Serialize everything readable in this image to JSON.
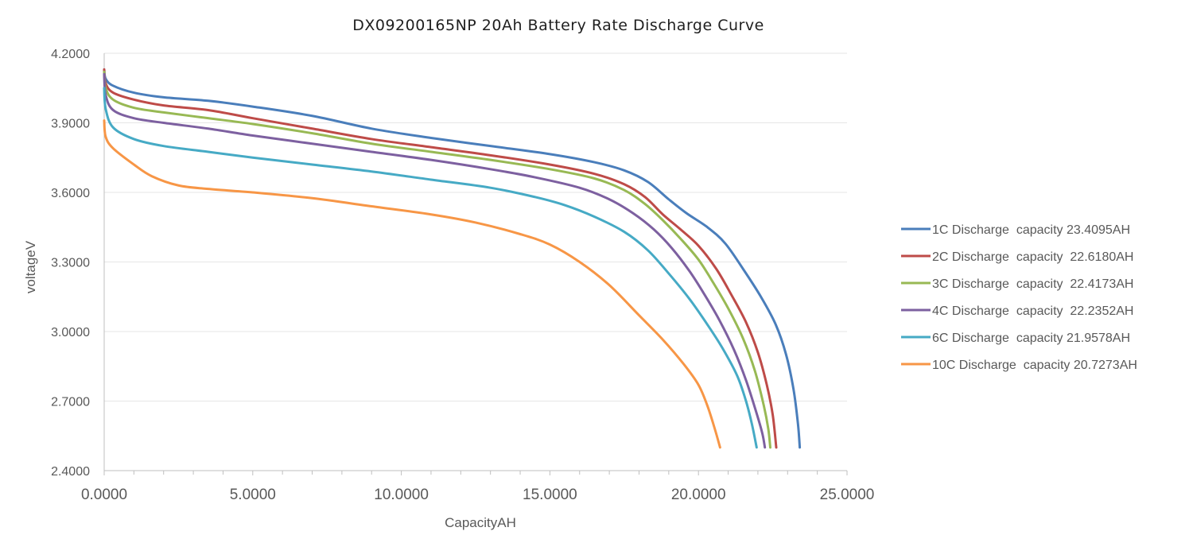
{
  "chart_data": {
    "type": "line",
    "title": "DX09200165NP 20Ah Battery Rate Discharge Curve",
    "xlabel": "CapacityAH",
    "ylabel": "voltageV",
    "xlim": [
      0,
      25
    ],
    "ylim": [
      2.4,
      4.2
    ],
    "x_ticks": [
      "0.0000",
      "5.0000",
      "10.0000",
      "15.0000",
      "20.0000",
      "25.0000"
    ],
    "y_ticks": [
      "2.4000",
      "2.7000",
      "3.0000",
      "3.3000",
      "3.6000",
      "3.9000",
      "4.2000"
    ],
    "grid": "horizontal",
    "legend_position": "right",
    "series": [
      {
        "name": "1C Discharge  capacity 23.4095AH",
        "color": "#4a7ebb",
        "points": [
          [
            0,
            4.13
          ],
          [
            0.05,
            4.09
          ],
          [
            0.3,
            4.06
          ],
          [
            1,
            4.03
          ],
          [
            2,
            4.01
          ],
          [
            3.5,
            3.995
          ],
          [
            5,
            3.97
          ],
          [
            7,
            3.93
          ],
          [
            9,
            3.875
          ],
          [
            11,
            3.835
          ],
          [
            13,
            3.8
          ],
          [
            15,
            3.765
          ],
          [
            16.5,
            3.73
          ],
          [
            17.5,
            3.695
          ],
          [
            18.3,
            3.645
          ],
          [
            19,
            3.57
          ],
          [
            19.6,
            3.51
          ],
          [
            20.3,
            3.45
          ],
          [
            20.9,
            3.38
          ],
          [
            21.5,
            3.27
          ],
          [
            22.1,
            3.15
          ],
          [
            22.6,
            3.03
          ],
          [
            22.95,
            2.9
          ],
          [
            23.2,
            2.75
          ],
          [
            23.35,
            2.6
          ],
          [
            23.4095,
            2.5
          ]
        ]
      },
      {
        "name": "2C Discharge  capacity  22.6180AH",
        "color": "#be4b48",
        "points": [
          [
            0,
            4.13
          ],
          [
            0.05,
            4.07
          ],
          [
            0.3,
            4.03
          ],
          [
            1,
            4.0
          ],
          [
            2,
            3.975
          ],
          [
            3.5,
            3.955
          ],
          [
            5,
            3.92
          ],
          [
            7,
            3.875
          ],
          [
            9,
            3.83
          ],
          [
            11,
            3.795
          ],
          [
            13,
            3.76
          ],
          [
            15,
            3.72
          ],
          [
            16.5,
            3.68
          ],
          [
            17.5,
            3.635
          ],
          [
            18.2,
            3.58
          ],
          [
            18.8,
            3.505
          ],
          [
            19.4,
            3.44
          ],
          [
            20,
            3.37
          ],
          [
            20.6,
            3.27
          ],
          [
            21.1,
            3.16
          ],
          [
            21.6,
            3.04
          ],
          [
            22.0,
            2.91
          ],
          [
            22.3,
            2.77
          ],
          [
            22.5,
            2.64
          ],
          [
            22.618,
            2.5
          ]
        ]
      },
      {
        "name": "3C Discharge  capacity  22.4173AH",
        "color": "#98b954",
        "points": [
          [
            0,
            4.12
          ],
          [
            0.05,
            4.05
          ],
          [
            0.3,
            4.0
          ],
          [
            1,
            3.965
          ],
          [
            2,
            3.945
          ],
          [
            3.5,
            3.92
          ],
          [
            5,
            3.895
          ],
          [
            7,
            3.855
          ],
          [
            9,
            3.81
          ],
          [
            11,
            3.775
          ],
          [
            13,
            3.74
          ],
          [
            15,
            3.7
          ],
          [
            16.5,
            3.66
          ],
          [
            17.5,
            3.61
          ],
          [
            18.2,
            3.55
          ],
          [
            18.8,
            3.48
          ],
          [
            19.4,
            3.4
          ],
          [
            20,
            3.31
          ],
          [
            20.5,
            3.21
          ],
          [
            21,
            3.1
          ],
          [
            21.5,
            2.97
          ],
          [
            21.9,
            2.83
          ],
          [
            22.2,
            2.68
          ],
          [
            22.35,
            2.58
          ],
          [
            22.4173,
            2.5
          ]
        ]
      },
      {
        "name": "4C Discharge  capacity  22.2352AH",
        "color": "#7d60a0",
        "points": [
          [
            0,
            4.11
          ],
          [
            0.05,
            4.02
          ],
          [
            0.3,
            3.955
          ],
          [
            1,
            3.92
          ],
          [
            2,
            3.9
          ],
          [
            3.5,
            3.875
          ],
          [
            5,
            3.845
          ],
          [
            7,
            3.81
          ],
          [
            9,
            3.775
          ],
          [
            11,
            3.74
          ],
          [
            13,
            3.7
          ],
          [
            14.5,
            3.665
          ],
          [
            16,
            3.62
          ],
          [
            17,
            3.57
          ],
          [
            17.8,
            3.51
          ],
          [
            18.5,
            3.44
          ],
          [
            19.1,
            3.36
          ],
          [
            19.7,
            3.26
          ],
          [
            20.2,
            3.16
          ],
          [
            20.7,
            3.05
          ],
          [
            21.2,
            2.92
          ],
          [
            21.6,
            2.79
          ],
          [
            21.95,
            2.65
          ],
          [
            22.15,
            2.56
          ],
          [
            22.2352,
            2.5
          ]
        ]
      },
      {
        "name": "6C Discharge  capacity 21.9578AH",
        "color": "#46aac5",
        "points": [
          [
            0,
            4.05
          ],
          [
            0.05,
            3.96
          ],
          [
            0.3,
            3.88
          ],
          [
            1,
            3.83
          ],
          [
            2,
            3.8
          ],
          [
            3.5,
            3.775
          ],
          [
            5,
            3.75
          ],
          [
            7,
            3.72
          ],
          [
            9,
            3.69
          ],
          [
            11,
            3.655
          ],
          [
            13,
            3.62
          ],
          [
            14.5,
            3.58
          ],
          [
            15.5,
            3.545
          ],
          [
            16.5,
            3.495
          ],
          [
            17.5,
            3.43
          ],
          [
            18.3,
            3.35
          ],
          [
            19,
            3.25
          ],
          [
            19.7,
            3.14
          ],
          [
            20.3,
            3.03
          ],
          [
            20.8,
            2.93
          ],
          [
            21.3,
            2.81
          ],
          [
            21.6,
            2.7
          ],
          [
            21.8,
            2.6
          ],
          [
            21.9578,
            2.5
          ]
        ]
      },
      {
        "name": "10C Discharge  capacity 20.7273AH",
        "color": "#f79646",
        "points": [
          [
            0,
            3.91
          ],
          [
            0.05,
            3.84
          ],
          [
            0.3,
            3.79
          ],
          [
            1,
            3.72
          ],
          [
            1.6,
            3.67
          ],
          [
            2.5,
            3.63
          ],
          [
            3.5,
            3.615
          ],
          [
            5,
            3.6
          ],
          [
            7,
            3.575
          ],
          [
            9,
            3.54
          ],
          [
            11,
            3.505
          ],
          [
            12.5,
            3.47
          ],
          [
            14,
            3.42
          ],
          [
            15,
            3.375
          ],
          [
            16,
            3.3
          ],
          [
            17,
            3.2
          ],
          [
            18,
            3.07
          ],
          [
            18.8,
            2.965
          ],
          [
            19.5,
            2.86
          ],
          [
            20.0,
            2.77
          ],
          [
            20.3,
            2.68
          ],
          [
            20.55,
            2.58
          ],
          [
            20.7273,
            2.5
          ]
        ]
      }
    ]
  }
}
